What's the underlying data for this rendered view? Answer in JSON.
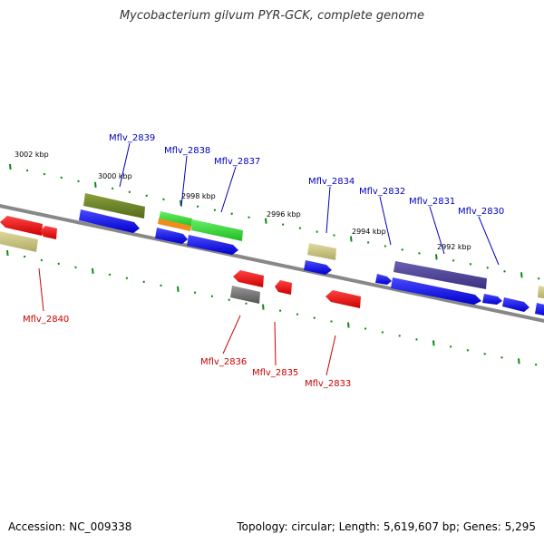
{
  "title": "Mycobacterium gilvum PYR-GCK, complete genome",
  "footer": {
    "accession": "Accession: NC_009338",
    "summary": "Topology: circular; Length: 5,619,607 bp; Genes: 5,295"
  },
  "colors": {
    "forward_label": "#0000bb",
    "reverse_label": "#cc0000",
    "backbone": "#888888",
    "ticks": "#118811"
  },
  "kbp_labels": [
    "3002 kbp",
    "3000 kbp",
    "2998 kbp",
    "2996 kbp",
    "2994 kbp",
    "2992 kbp"
  ],
  "forward_genes": [
    "Mflv_2839",
    "Mflv_2838",
    "Mflv_2837",
    "Mflv_2834",
    "Mflv_2832",
    "Mflv_2831",
    "Mflv_2830"
  ],
  "reverse_genes": [
    "Mflv_2840",
    "Mflv_2836",
    "Mflv_2835",
    "Mflv_2833"
  ]
}
